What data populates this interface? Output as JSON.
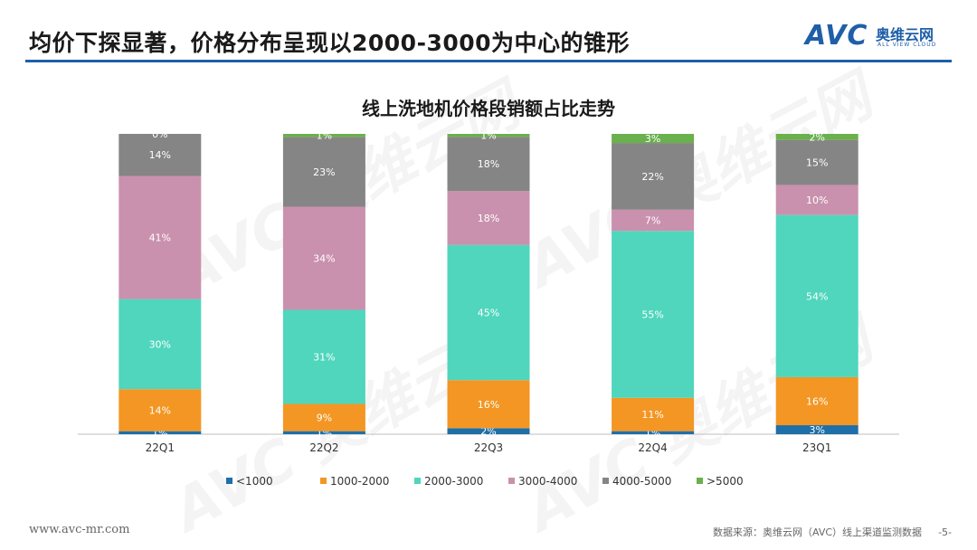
{
  "header": {
    "title": "均价下探显著，价格分布呈现以2000-3000为中心的锥形",
    "logo": {
      "mark": "AVC",
      "name_cn": "奥维云网",
      "name_en": "ALL VIEW CLOUD"
    }
  },
  "watermark_text": "AVC 奥维云网",
  "chart_data": {
    "type": "bar",
    "stacked": true,
    "normalized": true,
    "title": "线上洗地机价格段销额占比走势",
    "categories": [
      "22Q1",
      "22Q2",
      "22Q3",
      "22Q4",
      "23Q1"
    ],
    "series": [
      {
        "name": "<1000",
        "color": "#1f6fa8",
        "values": [
          1,
          1,
          2,
          1,
          3
        ]
      },
      {
        "name": "1000-2000",
        "color": "#f39623",
        "values": [
          14,
          9,
          16,
          11,
          16
        ]
      },
      {
        "name": "2000-3000",
        "color": "#4fd6bd",
        "values": [
          30,
          31,
          45,
          55,
          54
        ]
      },
      {
        "name": "3000-4000",
        "color": "#c991ad",
        "values": [
          41,
          34,
          18,
          7,
          10
        ]
      },
      {
        "name": "4000-5000",
        "color": "#858585",
        "values": [
          14,
          23,
          18,
          22,
          15
        ]
      },
      {
        "name": ">5000",
        "color": "#6ab04c",
        "values": [
          0,
          1,
          1,
          3,
          2
        ]
      }
    ],
    "legend_position": "bottom",
    "ylim": [
      0,
      100
    ],
    "value_suffix": "%"
  },
  "footer": {
    "website": "www.avc-mr.com",
    "source": "数据来源：奥维云网（AVC）线上渠道监测数据",
    "page": "-5-"
  }
}
